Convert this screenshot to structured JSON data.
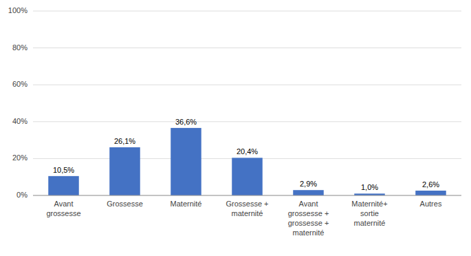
{
  "chart_data": {
    "type": "bar",
    "categories": [
      "Avant\ngrossesse",
      "Grossesse",
      "Maternité",
      "Grossesse +\nmaternité",
      "Avant\ngrossesse +\ngrossesse +\nmaternité",
      "Maternité+\nsortie\nmaternité",
      "Autres"
    ],
    "values": [
      10.5,
      26.1,
      36.6,
      20.4,
      2.9,
      1.0,
      2.6
    ],
    "value_labels": [
      "10,5%",
      "26,1%",
      "36,6%",
      "20,4%",
      "2,9%",
      "1,0%",
      "2,6%"
    ],
    "data_labels": true,
    "color": "#4472C4",
    "ylim": [
      0,
      100
    ],
    "yticks": [
      {
        "value": 0,
        "label": "0%"
      },
      {
        "value": 20,
        "label": "20%"
      },
      {
        "value": 40,
        "label": "40%"
      },
      {
        "value": 60,
        "label": "60%"
      },
      {
        "value": 80,
        "label": "80%"
      },
      {
        "value": 100,
        "label": "100%"
      }
    ],
    "grid": true
  }
}
